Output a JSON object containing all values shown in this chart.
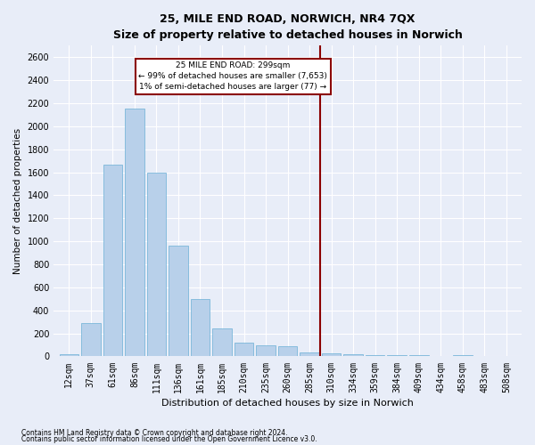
{
  "title": "25, MILE END ROAD, NORWICH, NR4 7QX",
  "subtitle": "Size of property relative to detached houses in Norwich",
  "xlabel": "Distribution of detached houses by size in Norwich",
  "ylabel": "Number of detached properties",
  "footnote1": "Contains HM Land Registry data © Crown copyright and database right 2024.",
  "footnote2": "Contains public sector information licensed under the Open Government Licence v3.0.",
  "annotation_title": "25 MILE END ROAD: 299sqm",
  "annotation_line1": "← 99% of detached houses are smaller (7,653)",
  "annotation_line2": "1% of semi-detached houses are larger (77) →",
  "bar_color": "#b8d0ea",
  "bar_edge_color": "#6aafd6",
  "vline_color": "#8b0000",
  "bg_color": "#e8edf8",
  "categories": [
    "12sqm",
    "37sqm",
    "61sqm",
    "86sqm",
    "111sqm",
    "136sqm",
    "161sqm",
    "185sqm",
    "210sqm",
    "235sqm",
    "260sqm",
    "285sqm",
    "310sqm",
    "334sqm",
    "359sqm",
    "384sqm",
    "409sqm",
    "434sqm",
    "458sqm",
    "483sqm",
    "508sqm"
  ],
  "values": [
    18,
    290,
    1670,
    2150,
    1600,
    960,
    500,
    240,
    120,
    100,
    85,
    35,
    25,
    18,
    13,
    12,
    8,
    3,
    10,
    3,
    3
  ],
  "ylim": [
    0,
    2700
  ],
  "yticks": [
    0,
    200,
    400,
    600,
    800,
    1000,
    1200,
    1400,
    1600,
    1800,
    2000,
    2200,
    2400,
    2600
  ],
  "vline_x_index": 11.5,
  "title_fontsize": 9,
  "subtitle_fontsize": 8,
  "xlabel_fontsize": 8,
  "ylabel_fontsize": 7.5,
  "tick_fontsize": 7,
  "annot_fontsize": 6.5,
  "footnote_fontsize": 5.5
}
